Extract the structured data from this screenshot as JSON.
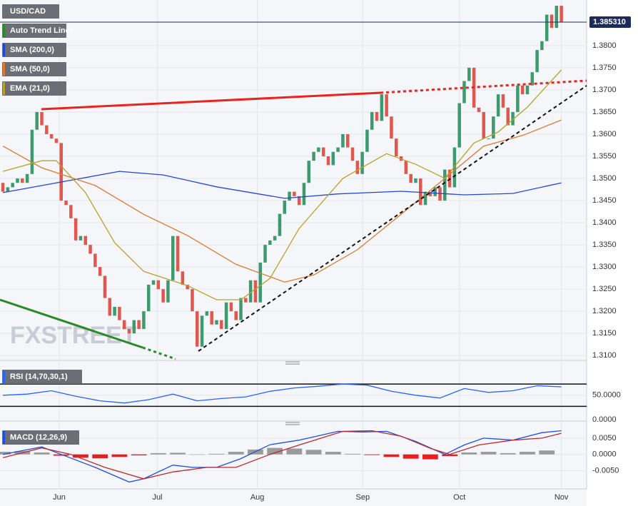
{
  "chart_data": [
    {
      "type": "candlestick",
      "title": "USD/CAD",
      "watermark": "FXSTREET",
      "up_color": "#3d9a6e",
      "down_color": "#e0574f",
      "opens": [
        1.349,
        1.347,
        1.348,
        1.349,
        1.35,
        1.349,
        1.351,
        1.361,
        1.365,
        1.362,
        1.36,
        1.359,
        1.358,
        1.345,
        1.344,
        1.341,
        1.336,
        1.337,
        1.335,
        1.333,
        1.33,
        1.328,
        1.323,
        1.319,
        1.321,
        1.318,
        1.316,
        1.315,
        1.318,
        1.316,
        1.32,
        1.326,
        1.327,
        1.325,
        1.322,
        1.327,
        1.337,
        1.329,
        1.326,
        1.325,
        1.32,
        1.312,
        1.319,
        1.32,
        1.317,
        1.318,
        1.316,
        1.322,
        1.32,
        1.318,
        1.323,
        1.322,
        1.327,
        1.322,
        1.331,
        1.335,
        1.336,
        1.337,
        1.342,
        1.345,
        1.347,
        1.346,
        1.344,
        1.349,
        1.354,
        1.356,
        1.357,
        1.355,
        1.353,
        1.356,
        1.357,
        1.36,
        1.357,
        1.354,
        1.351,
        1.356,
        1.361,
        1.365,
        1.363,
        1.369,
        1.364,
        1.359,
        1.355,
        1.354,
        1.351,
        1.349,
        1.35,
        1.344,
        1.347,
        1.346,
        1.348,
        1.345,
        1.352,
        1.348,
        1.357,
        1.367,
        1.372,
        1.375,
        1.366,
        1.365,
        1.359,
        1.359,
        1.364,
        1.369,
        1.366,
        1.362,
        1.365,
        1.371,
        1.369,
        1.371,
        1.374,
        1.379,
        1.381,
        1.387,
        1.384,
        1.389
      ],
      "closes": [
        1.347,
        1.348,
        1.349,
        1.35,
        1.349,
        1.351,
        1.361,
        1.365,
        1.362,
        1.36,
        1.359,
        1.358,
        1.345,
        1.344,
        1.341,
        1.336,
        1.337,
        1.335,
        1.333,
        1.33,
        1.328,
        1.323,
        1.319,
        1.321,
        1.318,
        1.316,
        1.315,
        1.318,
        1.316,
        1.32,
        1.326,
        1.327,
        1.325,
        1.322,
        1.327,
        1.337,
        1.329,
        1.326,
        1.325,
        1.32,
        1.312,
        1.319,
        1.32,
        1.317,
        1.318,
        1.316,
        1.322,
        1.32,
        1.318,
        1.323,
        1.322,
        1.327,
        1.322,
        1.331,
        1.335,
        1.336,
        1.337,
        1.342,
        1.345,
        1.347,
        1.346,
        1.344,
        1.349,
        1.354,
        1.356,
        1.357,
        1.355,
        1.353,
        1.356,
        1.357,
        1.36,
        1.357,
        1.354,
        1.351,
        1.356,
        1.361,
        1.365,
        1.363,
        1.369,
        1.364,
        1.359,
        1.355,
        1.354,
        1.351,
        1.349,
        1.35,
        1.344,
        1.347,
        1.346,
        1.348,
        1.345,
        1.352,
        1.348,
        1.357,
        1.367,
        1.372,
        1.375,
        1.366,
        1.365,
        1.359,
        1.359,
        1.364,
        1.369,
        1.366,
        1.362,
        1.365,
        1.371,
        1.369,
        1.371,
        1.374,
        1.379,
        1.381,
        1.387,
        1.384,
        1.389,
        1.38531
      ],
      "series": [
        {
          "name": "Auto Trend Lines",
          "color": "#2a8a2a"
        },
        {
          "name": "SMA (200,0)",
          "color": "#2446d8",
          "x": [
            0,
            24,
            33,
            44,
            58,
            69,
            82,
            95,
            105,
            115
          ],
          "values": [
            1.3468,
            1.3516,
            1.3508,
            1.3481,
            1.3455,
            1.3465,
            1.3471,
            1.3463,
            1.3466,
            1.349
          ]
        },
        {
          "name": "SMA (50,0)",
          "color": "#e07a2e",
          "x": [
            0,
            8,
            19,
            29,
            38,
            48,
            58,
            64,
            73,
            82,
            91,
            99,
            107,
            115
          ],
          "values": [
            1.3573,
            1.3524,
            1.3484,
            1.3419,
            1.3371,
            1.3306,
            1.3266,
            1.3282,
            1.3339,
            1.3419,
            1.35,
            1.3573,
            1.3597,
            1.3632
          ]
        },
        {
          "name": "EMA (21,0)",
          "color": "#b5a42a",
          "x": [
            0,
            8,
            11,
            17,
            23,
            29,
            38,
            44,
            49,
            55,
            61,
            70,
            79,
            85,
            91,
            97,
            102,
            108,
            115
          ],
          "values": [
            1.3516,
            1.354,
            1.354,
            1.3468,
            1.3355,
            1.329,
            1.3258,
            1.3226,
            1.3226,
            1.3274,
            1.3387,
            1.35,
            1.3556,
            1.3532,
            1.35,
            1.358,
            1.3605,
            1.3661,
            1.3745
          ]
        }
      ],
      "current_price": 1.38531,
      "current_price_label": "1.385310",
      "xlim": [
        -0.6,
        120.2
      ],
      "xticks": [
        {
          "value": 11.6,
          "label": "Jun"
        },
        {
          "value": 31.8,
          "label": "Jul"
        },
        {
          "value": 52.4,
          "label": "Aug"
        },
        {
          "value": 74.1,
          "label": "Sep"
        },
        {
          "value": 94,
          "label": "Oct"
        },
        {
          "value": 115,
          "label": "Nov"
        }
      ],
      "ylim": [
        1.3089,
        1.3903
      ],
      "yticks": [
        {
          "value": 1.31,
          "label": "1.3100"
        },
        {
          "value": 1.315,
          "label": "1.3150"
        },
        {
          "value": 1.32,
          "label": "1.3200"
        },
        {
          "value": 1.325,
          "label": "1.3250"
        },
        {
          "value": 1.33,
          "label": "1.3300"
        },
        {
          "value": 1.335,
          "label": "1.3350"
        },
        {
          "value": 1.34,
          "label": "1.3400"
        },
        {
          "value": 1.345,
          "label": "1.3450"
        },
        {
          "value": 1.35,
          "label": "1.3500"
        },
        {
          "value": 1.355,
          "label": "1.3550"
        },
        {
          "value": 1.36,
          "label": "1.3600"
        },
        {
          "value": 1.365,
          "label": "1.3650"
        },
        {
          "value": 1.37,
          "label": "1.3700"
        },
        {
          "value": 1.375,
          "label": "1.3750"
        },
        {
          "value": 1.38,
          "label": "1.3800"
        }
      ],
      "grid": true
    },
    {
      "type": "line",
      "title": "RSI (14,70,30,1)",
      "color": "#2962ff",
      "x": [
        0,
        5,
        10,
        15,
        20,
        25,
        30,
        35,
        40,
        45,
        50,
        55,
        60,
        65,
        70,
        75,
        80,
        85,
        90,
        95,
        100,
        105,
        110,
        115
      ],
      "values": [
        50,
        52,
        58,
        48,
        40,
        36,
        42,
        52,
        40,
        44,
        47,
        57,
        63,
        66,
        70,
        68,
        57,
        50,
        45,
        62,
        55,
        58,
        67,
        65
      ],
      "levels": [
        70,
        30
      ],
      "xlim": [
        -0.6,
        120.2
      ],
      "ylim": [
        11.3,
        104.7
      ],
      "yticks": [
        {
          "value": 50,
          "label": "50.0000"
        }
      ]
    },
    {
      "type": "macd",
      "title": "MACD (12,26,9)",
      "top_label": "0.0000",
      "series": [
        {
          "color": "#1f4fe0",
          "x": [
            0,
            8,
            12,
            19,
            26,
            29,
            35,
            39,
            44,
            49,
            55,
            61,
            69,
            74,
            79,
            85,
            91,
            95,
            99,
            105,
            111,
            115
          ],
          "values": [
            0,
            0.0023,
            0,
            -0.004,
            -0.0085,
            -0.0075,
            -0.0033,
            -0.004,
            -0.004,
            -0.0013,
            0.003,
            0.0044,
            0.0071,
            0.0069,
            0.0071,
            0.004,
            0,
            0.0029,
            0.005,
            0.0044,
            0.0067,
            0.0073
          ]
        },
        {
          "color": "#c0282a",
          "x": [
            0,
            8,
            14,
            21,
            29,
            35,
            42,
            48,
            55,
            61,
            70,
            76,
            82,
            88,
            92,
            98,
            105,
            111,
            115
          ],
          "values": [
            -0.001,
            0.002,
            0,
            -0.004,
            -0.0075,
            -0.0054,
            -0.004,
            -0.004,
            0,
            0.0029,
            0.0071,
            0.0073,
            0.0056,
            0.0019,
            0,
            0.0029,
            0.0044,
            0.005,
            0.0065
          ]
        }
      ],
      "histogram": {
        "up_color": "#9a9a9a",
        "down_color": "#ee1c1c",
        "x": [
          0,
          4,
          8,
          12,
          16,
          20,
          24,
          28,
          32,
          36,
          40,
          44,
          48,
          52,
          56,
          60,
          64,
          68,
          72,
          76,
          80,
          84,
          88,
          92,
          96,
          100,
          104,
          108,
          112
        ],
        "values": [
          0.0008,
          0.001,
          0.0006,
          -0.0004,
          -0.001,
          -0.0012,
          -0.0008,
          -0.0003,
          0.0004,
          0.0005,
          0,
          0.0002,
          0.0008,
          0.0015,
          0.002,
          0.0018,
          0.0014,
          0.0008,
          0.0002,
          -0.0002,
          -0.0008,
          -0.0013,
          -0.0015,
          -0.0005,
          0.0006,
          0.0008,
          0.0004,
          0.0008,
          0.0012
        ]
      },
      "xlim": [
        -0.6,
        120.2
      ],
      "ylim": [
        -0.0106,
        0.0085
      ],
      "yticks": [
        {
          "value": 0.005,
          "label": "0.0050"
        },
        {
          "value": 0,
          "label": "0.0000"
        },
        {
          "value": -0.005,
          "label": "-0.0050"
        }
      ]
    }
  ]
}
